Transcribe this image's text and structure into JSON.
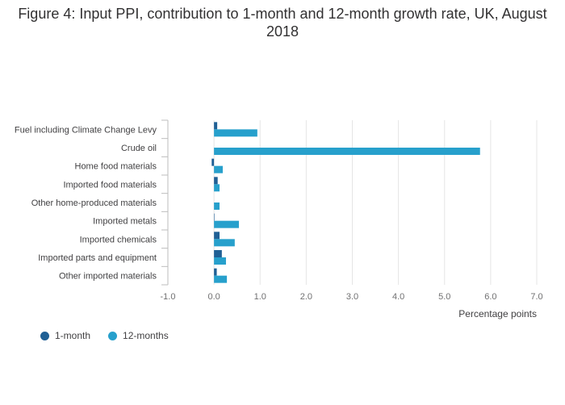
{
  "title": "Figure 4: Input PPI, contribution to 1-month and 12-month growth rate, UK, August 2018",
  "colors": {
    "one_month": "#206095",
    "twelve_months": "#27a0cc",
    "grid": "#e5e5e5",
    "axis": "#bdbdbd"
  },
  "chart_data": {
    "type": "bar",
    "orientation": "horizontal",
    "title": "Figure 4: Input PPI, contribution to 1-month and 12-month growth rate, UK, August 2018",
    "xlabel": "Percentage points",
    "ylabel": "",
    "xlim": [
      -1.0,
      7.0
    ],
    "xticks": [
      "-1.0",
      "0.0",
      "1.0",
      "2.0",
      "3.0",
      "4.0",
      "5.0",
      "6.0",
      "7.0"
    ],
    "grid": true,
    "legend_position": "bottom-left",
    "categories": [
      "Fuel including Climate Change Levy",
      "Crude oil",
      "Home food materials",
      "Imported food materials",
      "Other home-produced materials",
      "Imported metals",
      "Imported chemicals",
      "Imported parts and equipment",
      "Other imported materials"
    ],
    "series": [
      {
        "name": "1-month",
        "values": [
          0.07,
          0.0,
          -0.05,
          0.08,
          0.0,
          0.01,
          0.12,
          0.17,
          0.06
        ]
      },
      {
        "name": "12-months",
        "values": [
          0.94,
          5.77,
          0.19,
          0.12,
          0.12,
          0.54,
          0.45,
          0.26,
          0.28
        ]
      }
    ]
  }
}
